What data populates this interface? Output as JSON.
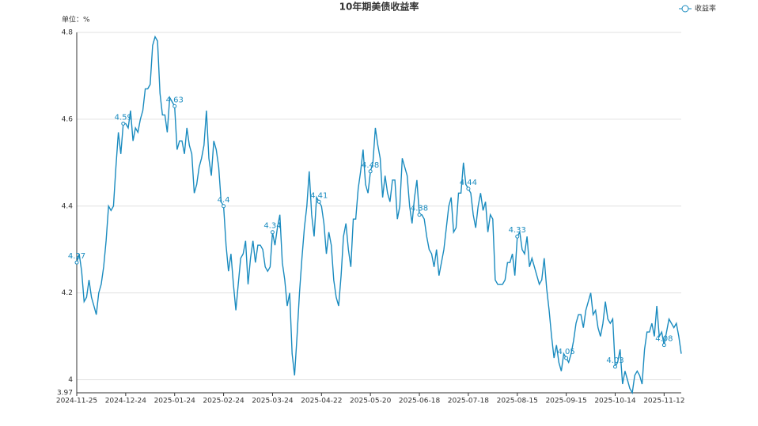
{
  "chart_data": {
    "type": "line",
    "title": "10年期美债收益率",
    "y_unit_label": "单位：%",
    "categories": [
      "2024-11-25",
      null,
      null,
      null,
      null,
      null,
      null,
      null,
      null,
      null,
      null,
      null,
      null,
      null,
      null,
      null,
      null,
      null,
      null,
      null,
      "2024-12-24",
      null,
      null,
      null,
      null,
      null,
      null,
      null,
      null,
      null,
      null,
      null,
      null,
      null,
      null,
      null,
      null,
      null,
      null,
      null,
      "2025-01-24",
      null,
      null,
      null,
      null,
      null,
      null,
      null,
      null,
      null,
      null,
      null,
      null,
      null,
      null,
      null,
      null,
      null,
      null,
      null,
      "2025-02-24",
      null,
      null,
      null,
      null,
      null,
      null,
      null,
      null,
      null,
      null,
      null,
      null,
      null,
      null,
      null,
      null,
      null,
      null,
      null,
      "2025-03-24",
      null,
      null,
      null,
      null,
      null,
      null,
      null,
      null,
      null,
      null,
      null,
      null,
      null,
      null,
      null,
      null,
      null,
      null,
      null,
      "2025-04-22",
      null,
      null,
      null,
      null,
      null,
      null,
      null,
      null,
      null,
      null,
      null,
      null,
      null,
      null,
      null,
      null,
      null,
      null,
      null,
      "2025-05-20",
      null,
      null,
      null,
      null,
      null,
      null,
      null,
      null,
      null,
      null,
      null,
      null,
      null,
      null,
      null,
      null,
      null,
      null,
      null,
      "2025-06-18",
      null,
      null,
      null,
      null,
      null,
      null,
      null,
      null,
      null,
      null,
      null,
      null,
      null,
      null,
      null,
      null,
      null,
      null,
      null,
      "2025-07-18",
      null,
      null,
      null,
      null,
      null,
      null,
      null,
      null,
      null,
      null,
      null,
      null,
      null,
      null,
      null,
      null,
      null,
      null,
      null,
      "2025-08-15",
      null,
      null,
      null,
      null,
      null,
      null,
      null,
      null,
      null,
      null,
      null,
      null,
      null,
      null,
      null,
      null,
      null,
      null,
      null,
      "2025-09-15",
      null,
      null,
      null,
      null,
      null,
      null,
      null,
      null,
      null,
      null,
      null,
      null,
      null,
      null,
      null,
      null,
      null,
      null,
      null,
      "2025-10-14",
      null,
      null,
      null,
      null,
      null,
      null,
      null,
      null,
      null,
      null,
      null,
      null,
      null,
      null,
      null,
      null,
      null,
      null,
      null,
      "2025-11-12",
      null,
      null,
      null,
      null,
      null,
      null,
      null
    ],
    "series": [
      {
        "name": "收益率",
        "color": "#1a8bbf",
        "values": [
          4.27,
          4.29,
          4.25,
          4.18,
          4.19,
          4.23,
          4.19,
          4.17,
          4.15,
          4.2,
          4.22,
          4.26,
          4.32,
          4.4,
          4.39,
          4.4,
          4.49,
          4.57,
          4.52,
          4.59,
          4.59,
          4.58,
          4.62,
          4.55,
          4.58,
          4.57,
          4.6,
          4.62,
          4.67,
          4.67,
          4.68,
          4.77,
          4.79,
          4.78,
          4.66,
          4.61,
          4.61,
          4.57,
          4.65,
          4.64,
          4.63,
          4.53,
          4.55,
          4.55,
          4.52,
          4.58,
          4.54,
          4.52,
          4.43,
          4.45,
          4.49,
          4.51,
          4.54,
          4.62,
          4.51,
          4.47,
          4.55,
          4.53,
          4.49,
          4.41,
          4.4,
          4.31,
          4.25,
          4.29,
          4.22,
          4.16,
          4.22,
          4.28,
          4.29,
          4.32,
          4.22,
          4.28,
          4.32,
          4.27,
          4.31,
          4.31,
          4.3,
          4.26,
          4.25,
          4.26,
          4.34,
          4.31,
          4.35,
          4.38,
          4.27,
          4.23,
          4.17,
          4.2,
          4.06,
          4.01,
          4.1,
          4.2,
          4.28,
          4.35,
          4.4,
          4.48,
          4.38,
          4.33,
          4.42,
          4.41,
          4.4,
          4.36,
          4.29,
          4.34,
          4.31,
          4.23,
          4.19,
          4.17,
          4.24,
          4.33,
          4.36,
          4.3,
          4.26,
          4.37,
          4.37,
          4.44,
          4.48,
          4.53,
          4.45,
          4.43,
          4.48,
          4.5,
          4.58,
          4.54,
          4.51,
          4.42,
          4.47,
          4.43,
          4.41,
          4.46,
          4.46,
          4.37,
          4.4,
          4.51,
          4.49,
          4.47,
          4.4,
          4.36,
          4.42,
          4.46,
          4.38,
          4.38,
          4.37,
          4.33,
          4.3,
          4.29,
          4.26,
          4.3,
          4.24,
          4.27,
          4.3,
          4.35,
          4.4,
          4.42,
          4.34,
          4.35,
          4.43,
          4.43,
          4.5,
          4.45,
          4.44,
          4.43,
          4.38,
          4.35,
          4.4,
          4.43,
          4.39,
          4.41,
          4.34,
          4.38,
          4.37,
          4.23,
          4.22,
          4.22,
          4.22,
          4.23,
          4.27,
          4.27,
          4.29,
          4.24,
          4.33,
          4.34,
          4.3,
          4.29,
          4.33,
          4.26,
          4.28,
          4.26,
          4.24,
          4.22,
          4.23,
          4.28,
          4.21,
          4.16,
          4.1,
          4.05,
          4.08,
          4.04,
          4.02,
          4.06,
          4.05,
          4.04,
          4.06,
          4.09,
          4.13,
          4.15,
          4.15,
          4.12,
          4.16,
          4.18,
          4.2,
          4.15,
          4.16,
          4.12,
          4.1,
          4.13,
          4.18,
          4.14,
          4.13,
          4.14,
          4.03,
          4.04,
          4.07,
          3.99,
          4.02,
          4.0,
          3.98,
          3.97,
          4.01,
          4.02,
          4.01,
          3.99,
          4.07,
          4.11,
          4.11,
          4.13,
          4.1,
          4.17,
          4.1,
          4.11,
          4.08,
          4.11,
          4.14,
          4.13,
          4.12,
          4.13,
          4.1,
          4.06
        ],
        "value_labels": [
          "4.27",
          null,
          null,
          null,
          null,
          null,
          null,
          null,
          null,
          null,
          null,
          null,
          null,
          null,
          null,
          null,
          null,
          null,
          null,
          "4.59",
          null,
          null,
          null,
          null,
          null,
          null,
          null,
          null,
          null,
          null,
          null,
          null,
          null,
          null,
          null,
          null,
          null,
          null,
          null,
          null,
          "4.63",
          null,
          null,
          null,
          null,
          null,
          null,
          null,
          null,
          null,
          null,
          null,
          null,
          null,
          null,
          null,
          null,
          null,
          null,
          null,
          "4.4",
          null,
          null,
          null,
          null,
          null,
          null,
          null,
          null,
          null,
          null,
          null,
          null,
          null,
          null,
          null,
          null,
          null,
          null,
          null,
          "4.34",
          null,
          null,
          null,
          null,
          null,
          null,
          null,
          null,
          null,
          null,
          null,
          null,
          null,
          null,
          null,
          null,
          null,
          null,
          "4.41",
          null,
          null,
          null,
          null,
          null,
          null,
          null,
          null,
          null,
          null,
          null,
          null,
          null,
          null,
          null,
          null,
          null,
          null,
          null,
          null,
          "4.48",
          null,
          null,
          null,
          null,
          null,
          null,
          null,
          null,
          null,
          null,
          null,
          null,
          null,
          null,
          null,
          null,
          null,
          null,
          null,
          "4.38",
          null,
          null,
          null,
          null,
          null,
          null,
          null,
          null,
          null,
          null,
          null,
          null,
          null,
          null,
          null,
          null,
          null,
          null,
          null,
          "4.44",
          null,
          null,
          null,
          null,
          null,
          null,
          null,
          null,
          null,
          null,
          null,
          null,
          null,
          null,
          null,
          null,
          null,
          null,
          null,
          "4.33",
          null,
          null,
          null,
          null,
          null,
          null,
          null,
          null,
          null,
          null,
          null,
          null,
          null,
          null,
          null,
          null,
          null,
          null,
          null,
          "4.05",
          null,
          null,
          null,
          null,
          null,
          null,
          null,
          null,
          null,
          null,
          null,
          null,
          null,
          null,
          null,
          null,
          null,
          null,
          null,
          "4.03",
          null,
          null,
          null,
          null,
          null,
          null,
          null,
          null,
          null,
          null,
          null,
          null,
          null,
          null,
          null,
          null,
          null,
          null,
          null,
          "4.08",
          null,
          null,
          null,
          null,
          null,
          null,
          null
        ]
      }
    ],
    "ylim": [
      3.97,
      4.8
    ],
    "yticks": [
      3.97,
      4,
      4.2,
      4.4,
      4.6,
      4.8
    ],
    "grid": true,
    "legend": "top-right"
  }
}
